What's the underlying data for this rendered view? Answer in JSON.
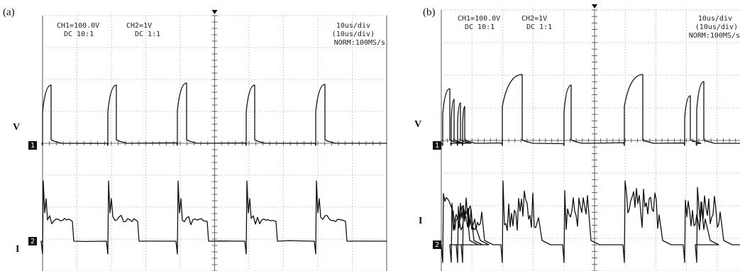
{
  "panels": [
    {
      "label": "(a)",
      "ch1": "CH1=100.0V",
      "ch1_coupling": "DC  10:1",
      "ch2": "CH2=1V",
      "ch2_coupling": "DC  1:1",
      "timebase": "10us/div",
      "timebase_sub": "(10us/div)",
      "mode": "NORM:100MS/s",
      "trace_labels": [
        "V",
        "I"
      ],
      "channel_markers": [
        "1",
        "2"
      ]
    },
    {
      "label": "(b)",
      "ch1": "CH1=100.0V",
      "ch1_coupling": "DC  10:1",
      "ch2": "CH2=1V",
      "ch2_coupling": "DC  1:1",
      "timebase": "10us/div",
      "timebase_sub": "(10us/div)",
      "mode": "NORM:100MS/s",
      "trace_labels": [
        "V",
        "I"
      ],
      "channel_markers": [
        "1",
        "2"
      ]
    }
  ]
}
